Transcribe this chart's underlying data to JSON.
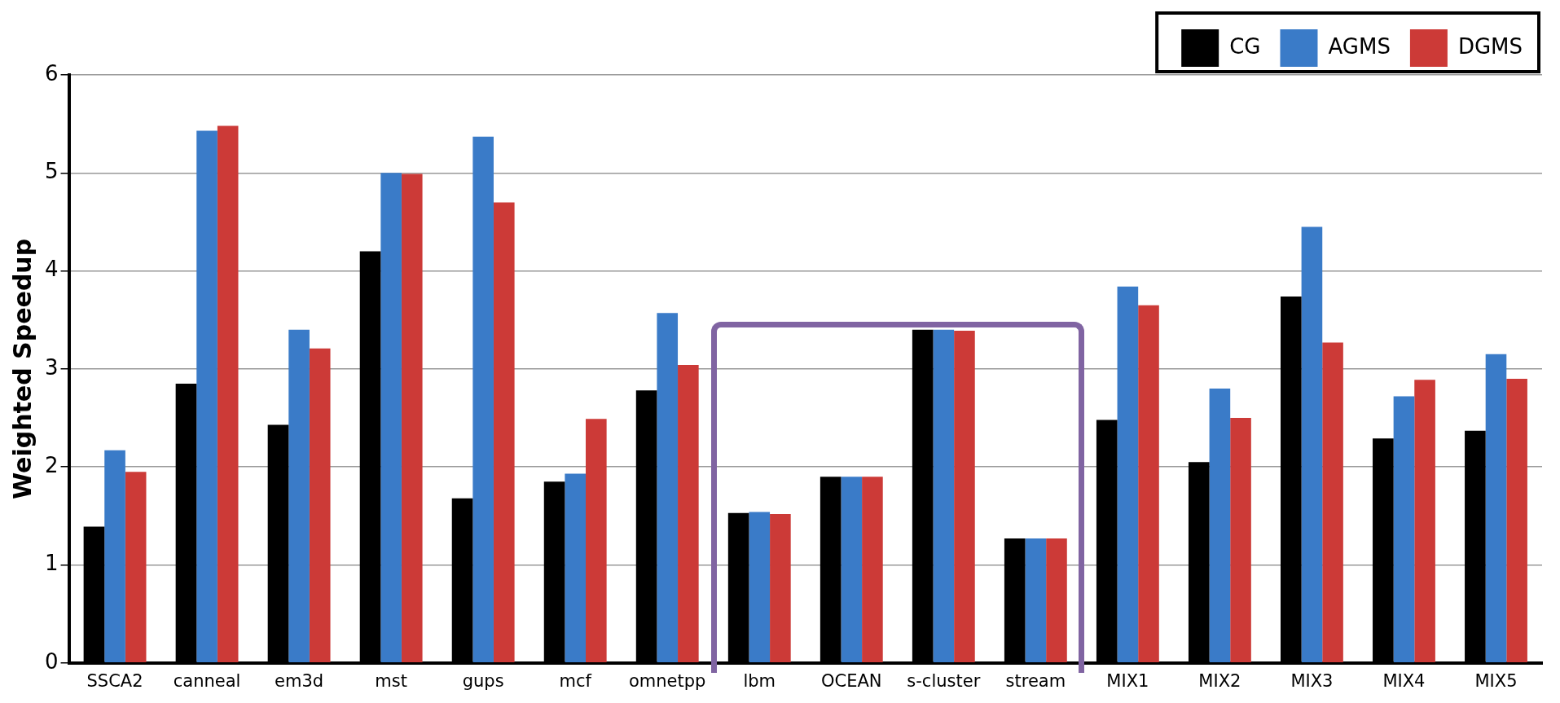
{
  "chart_data": {
    "type": "bar",
    "ylabel": "Weighted Speedup",
    "categories": [
      "SSCA2",
      "canneal",
      "em3d",
      "mst",
      "gups",
      "mcf",
      "omnetpp",
      "lbm",
      "OCEAN",
      "s-cluster",
      "stream",
      "MIX1",
      "MIX2",
      "MIX3",
      "MIX4",
      "MIX5"
    ],
    "series": [
      {
        "name": "CG",
        "color": "#000000",
        "values": [
          1.39,
          2.85,
          2.43,
          4.2,
          1.68,
          1.85,
          2.78,
          1.53,
          1.9,
          3.4,
          1.27,
          2.48,
          2.05,
          3.74,
          2.29,
          2.37
        ]
      },
      {
        "name": "AGMS",
        "color": "#3a7bc8",
        "values": [
          2.17,
          5.43,
          3.4,
          5.0,
          5.37,
          1.93,
          3.57,
          1.54,
          1.9,
          3.4,
          1.27,
          3.84,
          2.8,
          4.45,
          2.72,
          3.15
        ]
      },
      {
        "name": "DGMS",
        "color": "#cc3a37",
        "values": [
          1.95,
          5.48,
          3.21,
          4.99,
          4.7,
          2.49,
          3.04,
          1.52,
          1.9,
          3.39,
          1.27,
          3.65,
          2.5,
          3.27,
          2.89,
          2.9
        ]
      }
    ],
    "ylim": [
      0,
      6
    ],
    "yticks": [
      0,
      1,
      2,
      3,
      4,
      5,
      6
    ],
    "grid": "y",
    "legend": "top right"
  }
}
